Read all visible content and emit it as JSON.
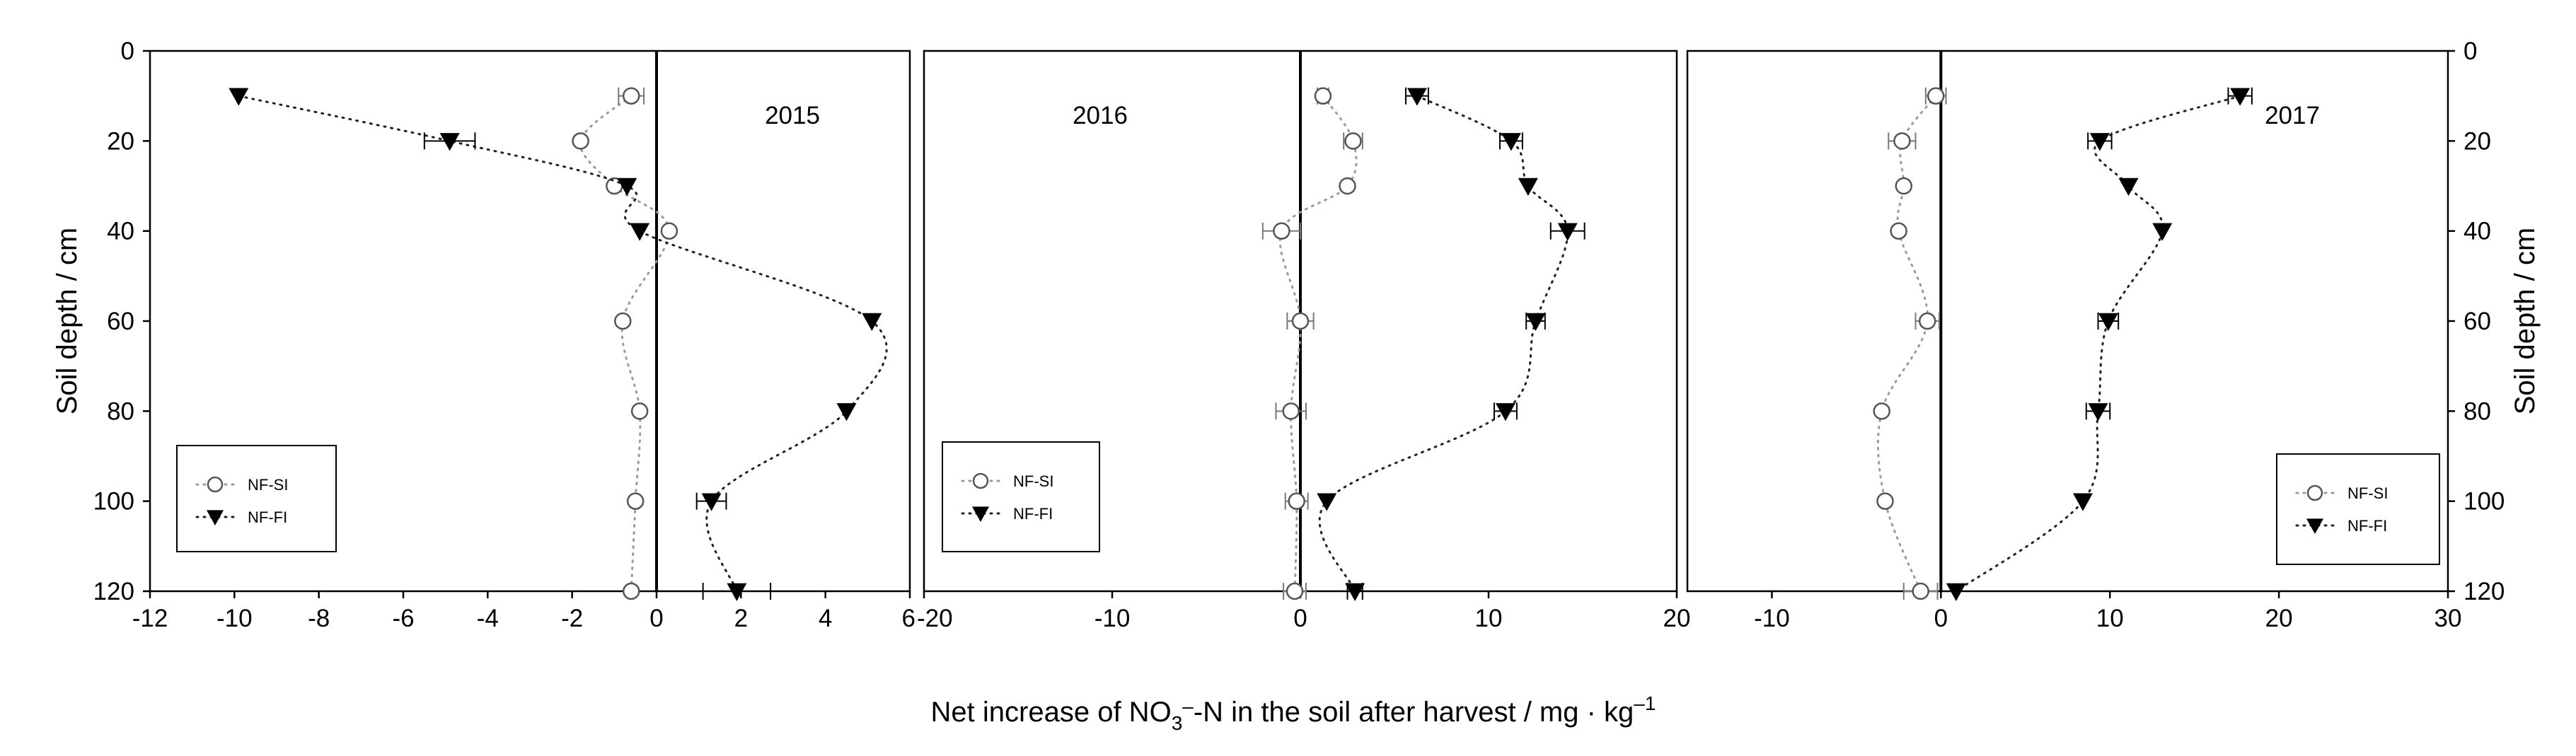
{
  "chart_data": [
    {
      "type": "scatter",
      "title": "2015",
      "xlabel": "Net increase of NO3–-N in the soil after harvest / mg · kg–1",
      "ylabel": "Soil depth / cm",
      "xlim": [
        -12,
        6
      ],
      "ylim": [
        0,
        120
      ],
      "x_ticks": [
        -12,
        -10,
        -8,
        -6,
        -4,
        -2,
        0,
        2,
        4,
        6
      ],
      "y_ticks": [
        0,
        20,
        40,
        60,
        80,
        100,
        120
      ],
      "legend_position": "bottom-left",
      "series": [
        {
          "name": "NF-SI",
          "marker": "open-circle",
          "points": [
            {
              "x": -0.6,
              "y": 10,
              "err": 0.3
            },
            {
              "x": -1.8,
              "y": 20,
              "err": 0
            },
            {
              "x": -1.0,
              "y": 30,
              "err": 0
            },
            {
              "x": 0.3,
              "y": 40,
              "err": 0
            },
            {
              "x": -0.8,
              "y": 60,
              "err": 0
            },
            {
              "x": -0.4,
              "y": 80,
              "err": 0
            },
            {
              "x": -0.5,
              "y": 100,
              "err": 0
            },
            {
              "x": -0.6,
              "y": 120,
              "err": 0
            }
          ]
        },
        {
          "name": "NF-FI",
          "marker": "filled-triangle-down",
          "points": [
            {
              "x": -9.9,
              "y": 10,
              "err": 0
            },
            {
              "x": -4.9,
              "y": 20,
              "err": 0.6
            },
            {
              "x": -0.7,
              "y": 30,
              "err": 0
            },
            {
              "x": -0.4,
              "y": 40,
              "err": 0
            },
            {
              "x": 5.1,
              "y": 60,
              "err": 0
            },
            {
              "x": 4.5,
              "y": 80,
              "err": 0
            },
            {
              "x": 1.3,
              "y": 100,
              "err": 0.35
            },
            {
              "x": 1.9,
              "y": 120,
              "err": 0.8
            }
          ]
        }
      ]
    },
    {
      "type": "scatter",
      "title": "2016",
      "xlim": [
        -20,
        20
      ],
      "ylim": [
        0,
        120
      ],
      "x_ticks": [
        -20,
        -10,
        0,
        10,
        20
      ],
      "y_ticks": [
        0,
        20,
        40,
        60,
        80,
        100,
        120
      ],
      "legend_position": "bottom-left",
      "series": [
        {
          "name": "NF-SI",
          "marker": "open-circle",
          "points": [
            {
              "x": 1.2,
              "y": 10,
              "err": 0.3
            },
            {
              "x": 2.8,
              "y": 20,
              "err": 0.5
            },
            {
              "x": 2.5,
              "y": 30,
              "err": 0
            },
            {
              "x": -1.0,
              "y": 40,
              "err": 1.0
            },
            {
              "x": 0.0,
              "y": 60,
              "err": 0.7
            },
            {
              "x": -0.5,
              "y": 80,
              "err": 0.8
            },
            {
              "x": -0.2,
              "y": 100,
              "err": 0.6
            },
            {
              "x": -0.3,
              "y": 120,
              "err": 0.6
            }
          ]
        },
        {
          "name": "NF-FI",
          "marker": "filled-triangle-down",
          "points": [
            {
              "x": 6.2,
              "y": 10,
              "err": 0.6
            },
            {
              "x": 11.2,
              "y": 20,
              "err": 0.6
            },
            {
              "x": 12.1,
              "y": 30,
              "err": 0
            },
            {
              "x": 14.2,
              "y": 40,
              "err": 0.9
            },
            {
              "x": 12.5,
              "y": 60,
              "err": 0.5
            },
            {
              "x": 10.9,
              "y": 80,
              "err": 0.6
            },
            {
              "x": 1.4,
              "y": 100,
              "err": 0
            },
            {
              "x": 2.9,
              "y": 120,
              "err": 0.4
            }
          ]
        }
      ]
    },
    {
      "type": "scatter",
      "title": "2017",
      "ylabel": "Soil depth / cm",
      "xlim": [
        -15,
        30
      ],
      "ylim": [
        0,
        120
      ],
      "x_ticks": [
        -10,
        0,
        10,
        20,
        30
      ],
      "y_ticks": [
        0,
        20,
        40,
        60,
        80,
        100,
        120
      ],
      "legend_position": "bottom-right",
      "series": [
        {
          "name": "NF-SI",
          "marker": "open-circle",
          "points": [
            {
              "x": -0.3,
              "y": 10,
              "err": 0.6
            },
            {
              "x": -2.3,
              "y": 20,
              "err": 0.8
            },
            {
              "x": -2.2,
              "y": 30,
              "err": 0
            },
            {
              "x": -2.5,
              "y": 40,
              "err": 0
            },
            {
              "x": -0.8,
              "y": 60,
              "err": 0.7
            },
            {
              "x": -3.5,
              "y": 80,
              "err": 0
            },
            {
              "x": -3.3,
              "y": 100,
              "err": 0
            },
            {
              "x": -1.2,
              "y": 120,
              "err": 1.0
            }
          ]
        },
        {
          "name": "NF-FI",
          "marker": "filled-triangle-down",
          "points": [
            {
              "x": 17.7,
              "y": 10,
              "err": 0.7
            },
            {
              "x": 9.4,
              "y": 20,
              "err": 0.7
            },
            {
              "x": 11.1,
              "y": 30,
              "err": 0
            },
            {
              "x": 13.1,
              "y": 40,
              "err": 0
            },
            {
              "x": 9.9,
              "y": 60,
              "err": 0.6
            },
            {
              "x": 9.3,
              "y": 80,
              "err": 0.7
            },
            {
              "x": 8.4,
              "y": 100,
              "err": 0
            },
            {
              "x": 0.9,
              "y": 120,
              "err": 0
            }
          ]
        }
      ]
    }
  ],
  "figure": {
    "xlabel_parts": {
      "before": "Net increase of NO",
      "sub": "3",
      "sup1": "–",
      "middle": "-N in the soil after harvest / mg · kg",
      "sup2": "–1"
    },
    "left_ylabel": "Soil depth / cm",
    "right_ylabel": "Soil depth / cm"
  }
}
